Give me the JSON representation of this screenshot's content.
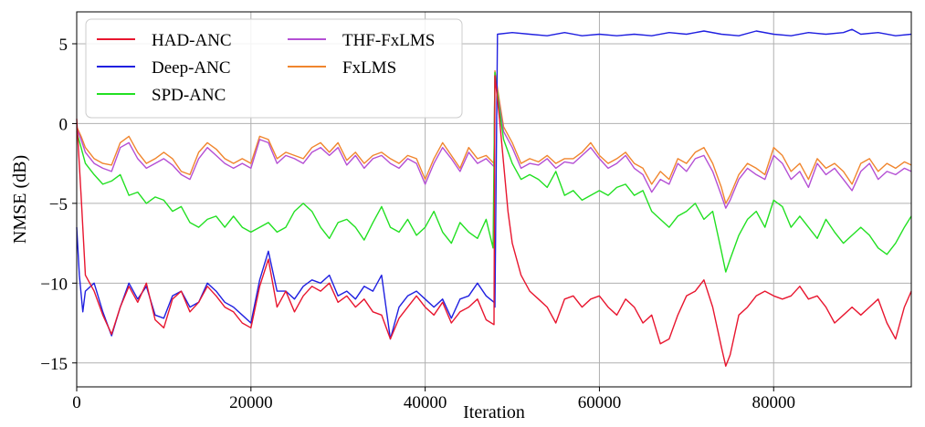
{
  "chart_data": {
    "type": "line",
    "title": "",
    "xlabel": "Iteration",
    "ylabel": "NMSE (dB)",
    "xlim": [
      0,
      95800
    ],
    "ylim": [
      -16.5,
      7
    ],
    "grid": true,
    "legend_position": "top-left",
    "x_ticks": [
      0,
      20000,
      40000,
      60000,
      80000
    ],
    "x_tick_labels": [
      "0",
      "20000",
      "40000",
      "60000",
      "80000"
    ],
    "y_ticks": [
      5,
      0,
      -5,
      -10,
      -15
    ],
    "y_tick_labels": [
      "5",
      "0",
      "−5",
      "−10",
      "−15"
    ],
    "legend_order": [
      "HAD-ANC",
      "Deep-ANC",
      "SPD-ANC",
      "THF-FxLMS",
      "FxLMS"
    ],
    "series": [
      {
        "name": "HAD-ANC",
        "color": "#e8162f",
        "x": [
          0,
          500,
          1000,
          2000,
          3000,
          4000,
          5000,
          6000,
          7000,
          8000,
          9000,
          10000,
          11000,
          12000,
          13000,
          14000,
          15000,
          16000,
          17000,
          18000,
          19000,
          20000,
          21000,
          22000,
          23000,
          24000,
          25000,
          26000,
          27000,
          28000,
          29000,
          30000,
          31000,
          32000,
          33000,
          34000,
          35000,
          36000,
          37000,
          38000,
          39000,
          40000,
          41000,
          42000,
          43000,
          44000,
          45000,
          46000,
          47000,
          47900,
          48000,
          48500,
          49000,
          49500,
          50000,
          51000,
          52000,
          53000,
          54000,
          55000,
          56000,
          57000,
          58000,
          59000,
          60000,
          61000,
          62000,
          63000,
          64000,
          65000,
          66000,
          67000,
          68000,
          69000,
          70000,
          71000,
          72000,
          73000,
          74000,
          74500,
          75000,
          76000,
          77000,
          78000,
          79000,
          80000,
          81000,
          82000,
          83000,
          84000,
          85000,
          86000,
          87000,
          88000,
          89000,
          90000,
          91000,
          92000,
          93000,
          94000,
          95000,
          95800
        ],
        "y": [
          0.3,
          -4.5,
          -9.5,
          -10.5,
          -12.0,
          -13.2,
          -11.5,
          -10.2,
          -11.2,
          -10.0,
          -12.3,
          -12.8,
          -11.0,
          -10.5,
          -11.8,
          -11.2,
          -10.2,
          -10.8,
          -11.5,
          -11.8,
          -12.5,
          -12.8,
          -10.2,
          -8.5,
          -11.5,
          -10.5,
          -11.8,
          -10.8,
          -10.2,
          -10.5,
          -10.0,
          -11.2,
          -10.8,
          -11.5,
          -11.0,
          -11.8,
          -12.0,
          -13.5,
          -12.2,
          -11.5,
          -10.8,
          -11.5,
          -12.0,
          -11.2,
          -12.5,
          -11.8,
          -11.5,
          -11.0,
          -12.3,
          -12.6,
          3.0,
          0.5,
          -2.5,
          -5.5,
          -7.5,
          -9.5,
          -10.5,
          -11.0,
          -11.5,
          -12.5,
          -11.0,
          -10.8,
          -11.5,
          -11.0,
          -10.8,
          -11.5,
          -12.0,
          -11.0,
          -11.5,
          -12.5,
          -12.0,
          -13.8,
          -13.5,
          -12.0,
          -10.8,
          -10.5,
          -9.8,
          -11.5,
          -14.0,
          -15.2,
          -14.5,
          -12.0,
          -11.5,
          -10.8,
          -10.5,
          -10.8,
          -11.0,
          -10.8,
          -10.2,
          -11.0,
          -10.8,
          -11.5,
          -12.5,
          -12.0,
          -11.5,
          -12.0,
          -11.5,
          -11.0,
          -12.5,
          -13.5,
          -11.5,
          -10.5
        ]
      },
      {
        "name": "Deep-ANC",
        "color": "#2020e0",
        "x": [
          0,
          300,
          700,
          1000,
          2000,
          3000,
          4000,
          5000,
          6000,
          7000,
          8000,
          9000,
          10000,
          11000,
          12000,
          13000,
          14000,
          15000,
          16000,
          17000,
          18000,
          19000,
          20000,
          21000,
          22000,
          23000,
          24000,
          25000,
          26000,
          27000,
          28000,
          29000,
          30000,
          31000,
          32000,
          33000,
          34000,
          35000,
          36000,
          37000,
          38000,
          39000,
          40000,
          41000,
          42000,
          43000,
          44000,
          45000,
          46000,
          47000,
          47900,
          48000,
          48300,
          50000,
          52000,
          54000,
          56000,
          58000,
          60000,
          62000,
          64000,
          66000,
          68000,
          70000,
          72000,
          74000,
          76000,
          78000,
          80000,
          82000,
          84000,
          86000,
          88000,
          89000,
          90000,
          92000,
          94000,
          95800
        ],
        "y": [
          -6.5,
          -9.5,
          -11.8,
          -10.5,
          -10.0,
          -11.8,
          -13.3,
          -11.5,
          -10.0,
          -11.0,
          -10.2,
          -12.0,
          -12.2,
          -10.8,
          -10.5,
          -11.5,
          -11.2,
          -10.0,
          -10.5,
          -11.2,
          -11.5,
          -12.0,
          -12.5,
          -9.8,
          -8.0,
          -10.5,
          -10.5,
          -11.0,
          -10.2,
          -9.8,
          -10.0,
          -9.5,
          -10.8,
          -10.5,
          -11.0,
          -10.2,
          -10.5,
          -9.5,
          -13.5,
          -11.5,
          -10.8,
          -10.5,
          -11.0,
          -11.5,
          -11.0,
          -12.2,
          -11.0,
          -10.8,
          -10.0,
          -10.8,
          -11.2,
          -11.5,
          5.6,
          5.7,
          5.6,
          5.5,
          5.7,
          5.5,
          5.6,
          5.5,
          5.6,
          5.5,
          5.7,
          5.6,
          5.8,
          5.6,
          5.5,
          5.8,
          5.6,
          5.5,
          5.7,
          5.6,
          5.7,
          5.9,
          5.6,
          5.7,
          5.5,
          5.6
        ]
      },
      {
        "name": "SPD-ANC",
        "color": "#22e022",
        "x": [
          0,
          500,
          1000,
          2000,
          3000,
          4000,
          5000,
          6000,
          7000,
          8000,
          9000,
          10000,
          11000,
          12000,
          13000,
          14000,
          15000,
          16000,
          17000,
          18000,
          19000,
          20000,
          21000,
          22000,
          23000,
          24000,
          25000,
          26000,
          27000,
          28000,
          29000,
          30000,
          31000,
          32000,
          33000,
          34000,
          35000,
          36000,
          37000,
          38000,
          39000,
          40000,
          41000,
          42000,
          43000,
          44000,
          45000,
          46000,
          47000,
          47800,
          48000,
          48500,
          49000,
          50000,
          51000,
          52000,
          53000,
          54000,
          55000,
          56000,
          57000,
          58000,
          59000,
          60000,
          61000,
          62000,
          63000,
          64000,
          65000,
          66000,
          67000,
          68000,
          69000,
          70000,
          71000,
          72000,
          73000,
          74000,
          74500,
          75000,
          76000,
          77000,
          78000,
          79000,
          80000,
          81000,
          82000,
          83000,
          84000,
          85000,
          86000,
          87000,
          88000,
          89000,
          90000,
          91000,
          92000,
          93000,
          94000,
          95000,
          95800
        ],
        "y": [
          -0.5,
          -1.5,
          -2.5,
          -3.2,
          -3.8,
          -3.6,
          -3.2,
          -4.5,
          -4.3,
          -5.0,
          -4.6,
          -4.8,
          -5.5,
          -5.2,
          -6.2,
          -6.5,
          -6.0,
          -5.8,
          -6.5,
          -5.8,
          -6.5,
          -6.8,
          -6.5,
          -6.2,
          -6.8,
          -6.5,
          -5.5,
          -5.0,
          -5.5,
          -6.5,
          -7.2,
          -6.2,
          -6.0,
          -6.5,
          -7.3,
          -6.2,
          -5.2,
          -6.5,
          -6.8,
          -6.0,
          -7.0,
          -6.5,
          -5.5,
          -6.8,
          -7.5,
          -6.2,
          -6.8,
          -7.2,
          -6.0,
          -7.8,
          3.2,
          1.0,
          -1.0,
          -2.5,
          -3.5,
          -3.2,
          -3.5,
          -4.0,
          -3.0,
          -4.5,
          -4.2,
          -4.8,
          -4.5,
          -4.2,
          -4.5,
          -4.0,
          -3.8,
          -4.5,
          -4.2,
          -5.5,
          -6.0,
          -6.5,
          -5.8,
          -5.5,
          -5.0,
          -6.0,
          -5.5,
          -8.0,
          -9.3,
          -8.5,
          -7.0,
          -6.0,
          -5.5,
          -6.5,
          -4.8,
          -5.2,
          -6.5,
          -5.8,
          -6.5,
          -7.2,
          -6.0,
          -6.8,
          -7.5,
          -7.0,
          -6.5,
          -7.0,
          -7.8,
          -8.2,
          -7.5,
          -6.5,
          -5.8
        ]
      },
      {
        "name": "THF-FxLMS",
        "color": "#b44fd4",
        "x": [
          0,
          500,
          1000,
          2000,
          3000,
          4000,
          5000,
          6000,
          7000,
          8000,
          9000,
          10000,
          11000,
          12000,
          13000,
          14000,
          15000,
          16000,
          17000,
          18000,
          19000,
          20000,
          21000,
          22000,
          23000,
          24000,
          25000,
          26000,
          27000,
          28000,
          29000,
          30000,
          31000,
          32000,
          33000,
          34000,
          35000,
          36000,
          37000,
          38000,
          39000,
          40000,
          41000,
          42000,
          43000,
          44000,
          45000,
          46000,
          47000,
          47900,
          48000,
          48500,
          49000,
          50000,
          51000,
          52000,
          53000,
          54000,
          55000,
          56000,
          57000,
          58000,
          59000,
          60000,
          61000,
          62000,
          63000,
          64000,
          65000,
          66000,
          67000,
          68000,
          69000,
          70000,
          71000,
          72000,
          73000,
          74000,
          74500,
          75000,
          76000,
          77000,
          78000,
          79000,
          80000,
          81000,
          82000,
          83000,
          84000,
          85000,
          86000,
          87000,
          88000,
          89000,
          90000,
          91000,
          92000,
          93000,
          94000,
          95000,
          95800
        ],
        "y": [
          -0.3,
          -1.0,
          -1.8,
          -2.5,
          -2.8,
          -3.0,
          -1.5,
          -1.2,
          -2.2,
          -2.8,
          -2.5,
          -2.2,
          -2.6,
          -3.2,
          -3.5,
          -2.2,
          -1.5,
          -2.0,
          -2.5,
          -2.8,
          -2.5,
          -2.8,
          -1.0,
          -1.2,
          -2.5,
          -2.0,
          -2.2,
          -2.5,
          -1.8,
          -1.5,
          -2.0,
          -1.5,
          -2.6,
          -2.0,
          -2.8,
          -2.2,
          -2.0,
          -2.5,
          -2.8,
          -2.2,
          -2.5,
          -3.8,
          -2.5,
          -1.5,
          -2.2,
          -3.0,
          -1.8,
          -2.5,
          -2.2,
          -2.7,
          3.0,
          1.2,
          -0.5,
          -1.5,
          -2.8,
          -2.5,
          -2.6,
          -2.2,
          -2.8,
          -2.4,
          -2.5,
          -2.0,
          -1.5,
          -2.2,
          -2.8,
          -2.5,
          -2.0,
          -2.8,
          -3.2,
          -4.3,
          -3.5,
          -3.8,
          -2.5,
          -3.0,
          -2.2,
          -2.0,
          -3.0,
          -4.5,
          -5.3,
          -4.8,
          -3.5,
          -2.8,
          -3.2,
          -3.5,
          -2.0,
          -2.5,
          -3.5,
          -3.0,
          -4.0,
          -2.5,
          -3.2,
          -2.8,
          -3.5,
          -4.2,
          -3.0,
          -2.5,
          -3.5,
          -3.0,
          -3.2,
          -2.8,
          -3.0
        ]
      },
      {
        "name": "FxLMS",
        "color": "#f0852d",
        "x": [
          0,
          500,
          1000,
          2000,
          3000,
          4000,
          5000,
          6000,
          7000,
          8000,
          9000,
          10000,
          11000,
          12000,
          13000,
          14000,
          15000,
          16000,
          17000,
          18000,
          19000,
          20000,
          21000,
          22000,
          23000,
          24000,
          25000,
          26000,
          27000,
          28000,
          29000,
          30000,
          31000,
          32000,
          33000,
          34000,
          35000,
          36000,
          37000,
          38000,
          39000,
          40000,
          41000,
          42000,
          43000,
          44000,
          45000,
          46000,
          47000,
          47900,
          48000,
          48500,
          49000,
          50000,
          51000,
          52000,
          53000,
          54000,
          55000,
          56000,
          57000,
          58000,
          59000,
          60000,
          61000,
          62000,
          63000,
          64000,
          65000,
          66000,
          67000,
          68000,
          69000,
          70000,
          71000,
          72000,
          73000,
          74000,
          74500,
          75000,
          76000,
          77000,
          78000,
          79000,
          80000,
          81000,
          82000,
          83000,
          84000,
          85000,
          86000,
          87000,
          88000,
          89000,
          90000,
          91000,
          92000,
          93000,
          94000,
          95000,
          95800
        ],
        "y": [
          -0.2,
          -0.8,
          -1.5,
          -2.2,
          -2.5,
          -2.6,
          -1.2,
          -0.8,
          -1.8,
          -2.5,
          -2.2,
          -1.8,
          -2.2,
          -3.0,
          -3.2,
          -1.8,
          -1.2,
          -1.6,
          -2.2,
          -2.5,
          -2.2,
          -2.5,
          -0.8,
          -1.0,
          -2.2,
          -1.8,
          -2.0,
          -2.2,
          -1.5,
          -1.2,
          -1.8,
          -1.2,
          -2.3,
          -1.8,
          -2.5,
          -2.0,
          -1.8,
          -2.2,
          -2.5,
          -2.0,
          -2.2,
          -3.5,
          -2.2,
          -1.2,
          -2.0,
          -2.8,
          -1.5,
          -2.2,
          -2.0,
          -2.5,
          3.3,
          1.5,
          -0.2,
          -1.2,
          -2.5,
          -2.2,
          -2.4,
          -2.0,
          -2.5,
          -2.2,
          -2.2,
          -1.8,
          -1.2,
          -2.0,
          -2.5,
          -2.2,
          -1.8,
          -2.5,
          -2.8,
          -3.8,
          -3.0,
          -3.5,
          -2.2,
          -2.5,
          -1.8,
          -1.5,
          -2.5,
          -4.0,
          -5.0,
          -4.5,
          -3.2,
          -2.5,
          -2.8,
          -3.2,
          -1.5,
          -2.0,
          -3.0,
          -2.5,
          -3.5,
          -2.2,
          -2.8,
          -2.5,
          -3.0,
          -3.8,
          -2.5,
          -2.2,
          -3.0,
          -2.5,
          -2.8,
          -2.4,
          -2.6
        ]
      }
    ]
  }
}
